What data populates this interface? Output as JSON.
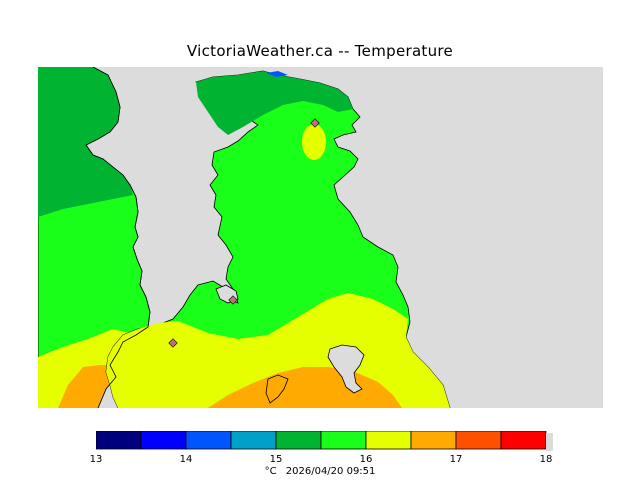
{
  "title": "VictoriaWeather.ca -- Temperature",
  "colors": {
    "land_gray": "#dcdcdc",
    "coast": "#000000",
    "station_fill": "#c07070"
  },
  "legend": {
    "unit": "°C",
    "timestamp": "2026/04/20 09:51",
    "bins": [
      {
        "from": 13,
        "to": 13.5,
        "color": "#00007f"
      },
      {
        "from": 13.5,
        "to": 14,
        "color": "#0000ff"
      },
      {
        "from": 14,
        "to": 14.5,
        "color": "#0055ff"
      },
      {
        "from": 14.5,
        "to": 15,
        "color": "#00a0c8"
      },
      {
        "from": 15,
        "to": 15.5,
        "color": "#00b432"
      },
      {
        "from": 15.5,
        "to": 16,
        "color": "#19ff19"
      },
      {
        "from": 16,
        "to": 16.5,
        "color": "#e6ff00"
      },
      {
        "from": 16.5,
        "to": 17,
        "color": "#ffaa00"
      },
      {
        "from": 17,
        "to": 17.5,
        "color": "#ff5000"
      },
      {
        "from": 17.5,
        "to": 18,
        "color": "#ff0000"
      }
    ],
    "tick_labels": [
      "13",
      "14",
      "15",
      "16",
      "17",
      "18"
    ]
  }
}
